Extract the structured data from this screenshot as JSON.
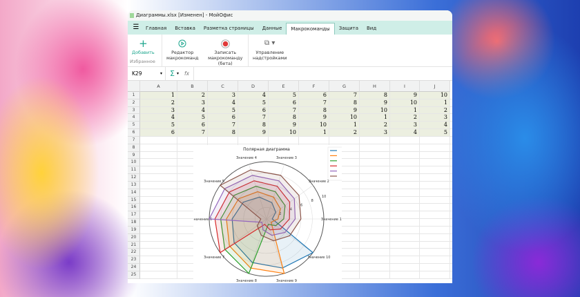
{
  "window": {
    "title": "Диаграммы.xlsx [Изменен] - МойОфис"
  },
  "tabs": [
    {
      "label": "Главная"
    },
    {
      "label": "Вставка"
    },
    {
      "label": "Разметка страницы"
    },
    {
      "label": "Данные"
    },
    {
      "label": "Макрокоманды",
      "active": true
    },
    {
      "label": "Защита"
    },
    {
      "label": "Вид"
    }
  ],
  "ribbon": {
    "add": "Добавить",
    "favorites": "Избранное",
    "editor_1": "Редактор",
    "editor_2": "макрокоманд",
    "record_1": "Записать",
    "record_2": "макрокоманду (бета)",
    "addins_1": "Управление",
    "addins_2": "надстройками"
  },
  "formula_bar": {
    "cell_ref": "K29",
    "value": ""
  },
  "sheet": {
    "columns": [
      "A",
      "B",
      "C",
      "D",
      "E",
      "F",
      "G",
      "H",
      "I",
      "J"
    ],
    "rows": [
      [
        1,
        2,
        3,
        4,
        5,
        6,
        7,
        8,
        9,
        10
      ],
      [
        2,
        3,
        4,
        5,
        6,
        7,
        8,
        9,
        10,
        1
      ],
      [
        3,
        4,
        5,
        6,
        7,
        8,
        9,
        10,
        1,
        2
      ],
      [
        4,
        5,
        6,
        7,
        8,
        9,
        10,
        1,
        2,
        3
      ],
      [
        5,
        6,
        7,
        8,
        9,
        10,
        1,
        2,
        3,
        4
      ],
      [
        6,
        7,
        8,
        9,
        10,
        1,
        2,
        3,
        4,
        5
      ]
    ],
    "row_count": 25
  },
  "chart_data": {
    "type": "polar",
    "title": "Полярная диаграмма",
    "categories": [
      "Значение 1",
      "Значение 2",
      "Значение 3",
      "Значение 4",
      "Значение 5",
      "Значение 6",
      "Значение 7",
      "Значение 8",
      "Значение 9",
      "Значение 10"
    ],
    "radial_ticks": [
      2,
      4,
      6,
      8,
      10
    ],
    "rlim": [
      0,
      10
    ],
    "grid": true,
    "legend": "top-right",
    "series": [
      {
        "values": [
          1,
          2,
          3,
          4,
          5,
          6,
          7,
          8,
          9,
          10
        ],
        "color": "#1f77b4"
      },
      {
        "values": [
          2,
          3,
          4,
          5,
          6,
          7,
          8,
          9,
          10,
          1
        ],
        "color": "#ff7f0e"
      },
      {
        "values": [
          3,
          4,
          5,
          6,
          7,
          8,
          9,
          10,
          1,
          2
        ],
        "color": "#2ca02c"
      },
      {
        "values": [
          4,
          5,
          6,
          7,
          8,
          9,
          10,
          1,
          2,
          3
        ],
        "color": "#d62728"
      },
      {
        "values": [
          5,
          6,
          7,
          8,
          9,
          10,
          1,
          2,
          3,
          4
        ],
        "color": "#9467bd"
      },
      {
        "values": [
          6,
          7,
          8,
          9,
          10,
          1,
          2,
          3,
          4,
          5
        ],
        "color": "#8c564b"
      }
    ]
  },
  "colors": {
    "accent": "#1aa58c",
    "tab_bar": "#cfeee7",
    "record": "#e03a3a",
    "data_fill": "#ecefe0"
  }
}
